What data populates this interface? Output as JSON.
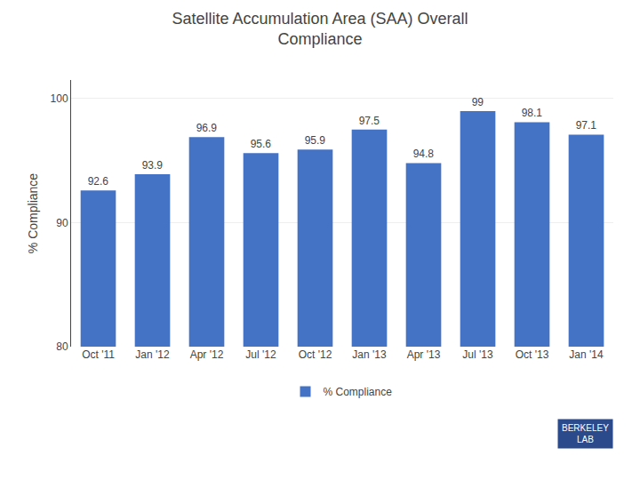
{
  "chart_data": {
    "type": "bar",
    "title": "Satellite Accumulation Area (SAA) Overall\nCompliance",
    "ylabel": "% Compliance",
    "categories": [
      "Oct '11",
      "Jan '12",
      "Apr '12",
      "Jul '12",
      "Oct '12",
      "Jan '13",
      "Apr '13",
      "Jul '13",
      "Oct '13",
      "Jan '14"
    ],
    "series": [
      {
        "name": "% Compliance",
        "color": "#4472C4",
        "values": [
          92.6,
          93.9,
          96.9,
          95.6,
          95.9,
          97.5,
          94.8,
          99,
          98.1,
          97.1
        ]
      }
    ],
    "ylim": [
      80,
      101.5
    ],
    "yticks": [
      80,
      90,
      100
    ],
    "grid": true,
    "legend": "bottom",
    "data_labels": true,
    "annotations": [
      {
        "text": "BERKELEY\nLAB"
      }
    ]
  }
}
